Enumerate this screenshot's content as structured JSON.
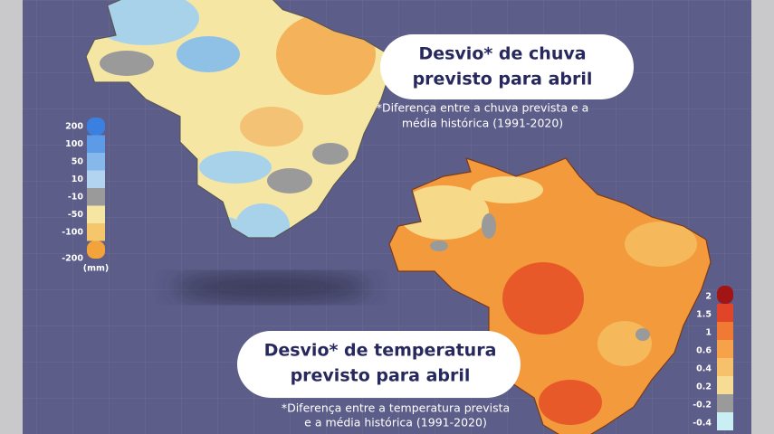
{
  "rain_card": {
    "title_lines": [
      "Desvio* de chuva",
      "previsto para abril"
    ],
    "note_lines": [
      "*Diferença entre a chuva prevista e a",
      "média histórica (1991-2020)"
    ]
  },
  "temp_card": {
    "title_lines": [
      "Desvio* de temperatura",
      "previsto para abril"
    ],
    "note_lines": [
      "*Diferença entre a temperatura prevista",
      "e a média histórica (1991-2020)"
    ]
  },
  "rain_legend": {
    "labels": [
      "200",
      "100",
      "50",
      "10",
      "-10",
      "-50",
      "-100",
      "-200"
    ],
    "unit": "(mm)"
  },
  "temp_legend": {
    "labels": [
      "2",
      "1.5",
      "1",
      "0.6",
      "0.4",
      "0.2",
      "-0.2",
      "-0.4"
    ]
  }
}
